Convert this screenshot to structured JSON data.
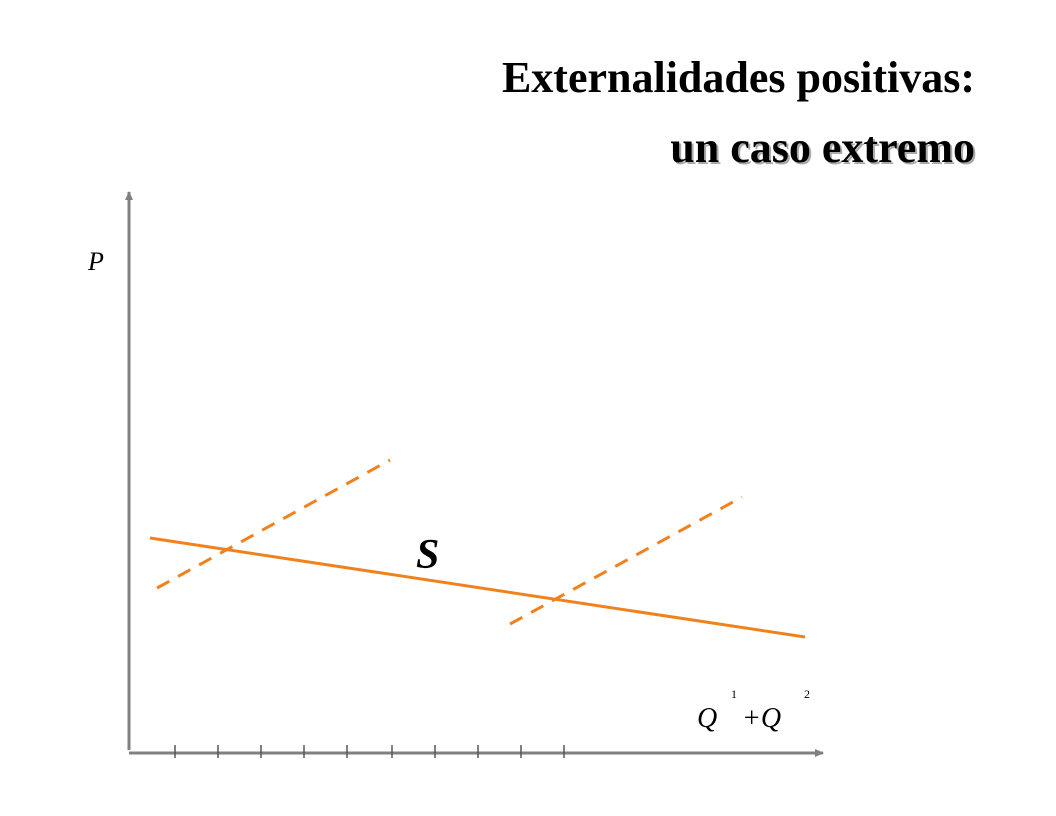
{
  "title": {
    "line1": "Externalidades positivas:",
    "line2": "un caso extremo"
  },
  "y_axis_label": "P",
  "x_axis_label": [
    "Q",
    "1",
    "+Q",
    "2"
  ],
  "curve_label": "S"
}
